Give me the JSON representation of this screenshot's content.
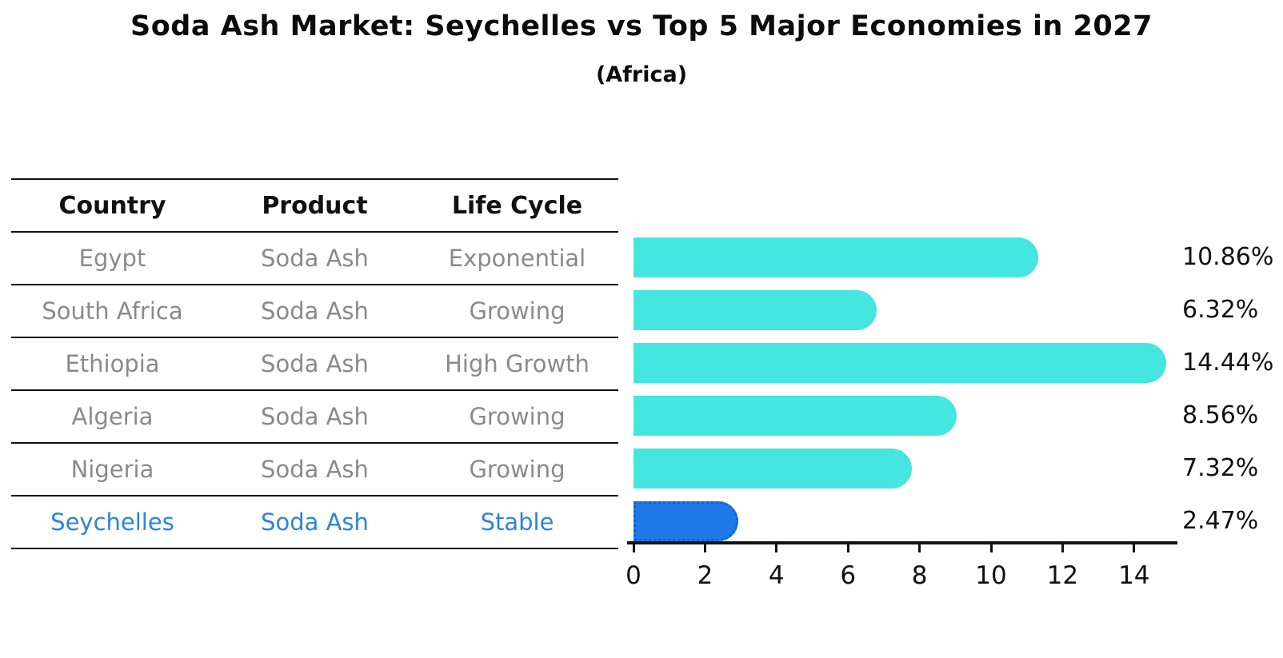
{
  "title": "Soda Ash Market: Seychelles vs Top 5 Major Economies in 2027",
  "subtitle": "(Africa)",
  "table": {
    "headers": [
      "Country",
      "Product",
      "Life Cycle"
    ],
    "rows": [
      {
        "country": "Egypt",
        "product": "Soda Ash",
        "life_cycle": "Exponential",
        "highlight": false
      },
      {
        "country": "South Africa",
        "product": "Soda Ash",
        "life_cycle": "Growing",
        "highlight": false
      },
      {
        "country": "Ethiopia",
        "product": "Soda Ash",
        "life_cycle": "High Growth",
        "highlight": false
      },
      {
        "country": "Algeria",
        "product": "Soda Ash",
        "life_cycle": "Growing",
        "highlight": false
      },
      {
        "country": "Nigeria",
        "product": "Soda Ash",
        "life_cycle": "Growing",
        "highlight": false
      },
      {
        "country": "Seychelles",
        "product": "Soda Ash",
        "life_cycle": "Stable",
        "highlight": true
      }
    ]
  },
  "chart_data": {
    "type": "bar",
    "orientation": "horizontal",
    "title": "Soda Ash Market: Seychelles vs Top 5 Major Economies in 2027",
    "subtitle": "(Africa)",
    "categories": [
      "Egypt",
      "South Africa",
      "Ethiopia",
      "Algeria",
      "Nigeria",
      "Seychelles"
    ],
    "values": [
      10.86,
      6.32,
      14.44,
      8.56,
      7.32,
      2.47
    ],
    "value_labels": [
      "10.86%",
      "6.32%",
      "14.44%",
      "8.56%",
      "7.32%",
      "2.47%"
    ],
    "x_ticks": [
      0,
      2,
      4,
      6,
      8,
      10,
      12,
      14
    ],
    "xlim": [
      0,
      15.2
    ],
    "xlabel": "",
    "ylabel": "",
    "grid": false,
    "legend": false,
    "bar_color": "#45E5E0",
    "highlight_color": "#1E78E8",
    "highlight_index": 5,
    "highlight_edge_style": "dotted"
  }
}
